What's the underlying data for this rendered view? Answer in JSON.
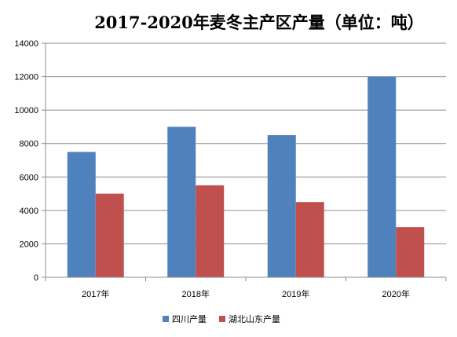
{
  "chart_data": {
    "type": "bar",
    "title": "2017-2020年麦冬主产区产量（单位：吨）",
    "categories": [
      "2017年",
      "2018年",
      "2019年",
      "2020年"
    ],
    "series": [
      {
        "name": "四川产量",
        "values": [
          7500,
          9000,
          8500,
          12000
        ],
        "color": "#4F81BD"
      },
      {
        "name": "湖北山东产量",
        "values": [
          5000,
          5500,
          4500,
          3000
        ],
        "color": "#C0504D"
      }
    ],
    "ylim": [
      0,
      14000
    ],
    "yticks": [
      0,
      2000,
      4000,
      6000,
      8000,
      10000,
      12000,
      14000
    ],
    "grid": true,
    "legend": "bottom",
    "xlabel": "",
    "ylabel": ""
  }
}
